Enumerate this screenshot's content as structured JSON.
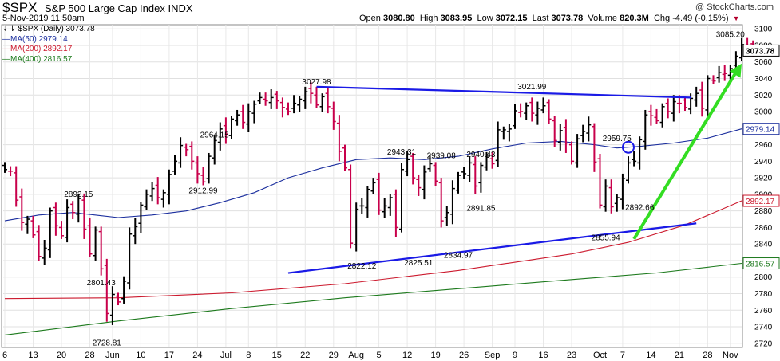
{
  "header": {
    "symbol": "$SPX",
    "name": "S&P 500 Large Cap Index",
    "exchange": "INDX",
    "brand": "@ StockCharts.com",
    "date": "5-Nov-2019 11:50am",
    "open_label": "Open",
    "open": "3080.80",
    "high_label": "High",
    "high": "3083.95",
    "low_label": "Low",
    "low": "3072.15",
    "last_label": "Last",
    "last": "3073.78",
    "volume_label": "Volume",
    "volume": "820.3M",
    "chg_label": "Chg",
    "chg": "-4.49 (-0.15%)"
  },
  "legend": {
    "price": "$SPX (Daily) 3073.78",
    "ma50": "MA(50) 2979.14",
    "ma200": "MA(200) 2892.17",
    "ma400": "MA(400) 2816.57"
  },
  "colors": {
    "up_bar": "#000000",
    "down_bar": "#c8004b",
    "ma50": "#1c2f9e",
    "ma200": "#cc1a2e",
    "ma400": "#1d7a1d",
    "trendline": "#1a1ae6",
    "arrow": "#33dd22"
  },
  "chart_data": {
    "type": "ohlc",
    "title": "$SPX S&P 500 Large Cap Index INDX",
    "ylim": [
      2715,
      3105
    ],
    "y_ticks": [
      2720,
      2740,
      2760,
      2780,
      2800,
      2820,
      2840,
      2860,
      2880,
      2900,
      2920,
      2940,
      2960,
      2980,
      3000,
      3020,
      3040,
      3060,
      3080,
      3100
    ],
    "x_ticks": [
      {
        "day": 0,
        "label": "6"
      },
      {
        "day": 5,
        "label": "13"
      },
      {
        "day": 10,
        "label": "20"
      },
      {
        "day": 15,
        "label": "28"
      },
      {
        "day": 19,
        "label": "Jun"
      },
      {
        "day": 24,
        "label": "10"
      },
      {
        "day": 29,
        "label": "17"
      },
      {
        "day": 34,
        "label": "24"
      },
      {
        "day": 39,
        "label": "Jul"
      },
      {
        "day": 43,
        "label": "8"
      },
      {
        "day": 48,
        "label": "15"
      },
      {
        "day": 53,
        "label": "22"
      },
      {
        "day": 58,
        "label": "29"
      },
      {
        "day": 62,
        "label": "Aug"
      },
      {
        "day": 66,
        "label": "5"
      },
      {
        "day": 71,
        "label": "12"
      },
      {
        "day": 76,
        "label": "19"
      },
      {
        "day": 81,
        "label": "26"
      },
      {
        "day": 86,
        "label": "Sep"
      },
      {
        "day": 90,
        "label": "9"
      },
      {
        "day": 95,
        "label": "16"
      },
      {
        "day": 100,
        "label": "23"
      },
      {
        "day": 105,
        "label": "Oct"
      },
      {
        "day": 109,
        "label": "7"
      },
      {
        "day": 114,
        "label": "14"
      },
      {
        "day": 119,
        "label": "21"
      },
      {
        "day": 124,
        "label": "28"
      },
      {
        "day": 128,
        "label": "Nov"
      }
    ],
    "closes": [
      2930,
      2928,
      2893,
      2866,
      2870,
      2851,
      2825,
      2835,
      2880,
      2862,
      2850,
      2884,
      2878,
      2895,
      2858,
      2828,
      2857,
      2810,
      2756,
      2779,
      2770,
      2795,
      2852,
      2861,
      2887,
      2900,
      2907,
      2896,
      2902,
      2924,
      2940,
      2959,
      2954,
      2940,
      2925,
      2915,
      2946,
      2965,
      2979,
      2973,
      2991,
      2996,
      2987,
      3000,
      3009,
      3017,
      3013,
      3017,
      3013,
      3005,
      3000,
      3010,
      3015,
      3024,
      3022,
      3008,
      3018,
      3006,
      2988,
      2952,
      2932,
      2841,
      2882,
      2886,
      2906,
      2914,
      2881,
      2886,
      2896,
      2860,
      2930,
      2942,
      2920,
      2908,
      2927,
      2937,
      2916,
      2868,
      2878,
      2907,
      2923,
      2925,
      2938,
      2910,
      2935,
      2945,
      2937,
      2978,
      2978,
      2979,
      3001,
      3000,
      3007,
      2998,
      3004,
      3007,
      2991,
      2965,
      2977,
      2962,
      2940,
      2967,
      2976,
      2984,
      2939,
      2887,
      2910,
      2885,
      2896,
      2919,
      2938,
      2940,
      2966,
      2996,
      2995,
      2989,
      3006,
      3000,
      3012,
      3010,
      3005,
      3016,
      3022,
      3004,
      3040,
      3037,
      3047,
      3046,
      3052,
      3067,
      3081,
      3078,
      3073.78
    ],
    "series": [
      {
        "name": "MA(50)",
        "last": 2979.14
      },
      {
        "name": "MA(200)",
        "last": 2892.17
      },
      {
        "name": "MA(400)",
        "last": 2816.57
      }
    ],
    "ma50_points": [
      [
        0,
        2868
      ],
      [
        6,
        2875
      ],
      [
        12,
        2878
      ],
      [
        20,
        2872
      ],
      [
        26,
        2875
      ],
      [
        32,
        2880
      ],
      [
        38,
        2890
      ],
      [
        44,
        2902
      ],
      [
        50,
        2920
      ],
      [
        56,
        2932
      ],
      [
        62,
        2942
      ],
      [
        68,
        2944
      ],
      [
        74,
        2942
      ],
      [
        80,
        2946
      ],
      [
        86,
        2955
      ],
      [
        92,
        2962
      ],
      [
        98,
        2964
      ],
      [
        104,
        2960
      ],
      [
        108,
        2956
      ],
      [
        112,
        2958
      ],
      [
        118,
        2962
      ],
      [
        124,
        2968
      ],
      [
        130,
        2979.14
      ]
    ],
    "ma200_points": [
      [
        0,
        2774
      ],
      [
        20,
        2775
      ],
      [
        40,
        2781
      ],
      [
        60,
        2792
      ],
      [
        80,
        2808
      ],
      [
        100,
        2828
      ],
      [
        110,
        2842
      ],
      [
        120,
        2863
      ],
      [
        130,
        2892.17
      ]
    ],
    "ma400_points": [
      [
        0,
        2730
      ],
      [
        20,
        2747
      ],
      [
        40,
        2762
      ],
      [
        60,
        2775
      ],
      [
        80,
        2786
      ],
      [
        100,
        2797
      ],
      [
        115,
        2805
      ],
      [
        130,
        2816.57
      ]
    ],
    "annotations": [
      {
        "text": "2892.15",
        "day": 13,
        "value": 2892.15,
        "pos": "above"
      },
      {
        "text": "2801.43",
        "day": 17,
        "value": 2801.43,
        "pos": "below"
      },
      {
        "text": "2728.81",
        "day": 18,
        "value": 2728.81,
        "pos": "below"
      },
      {
        "text": "2964.15",
        "day": 37,
        "value": 2964.15,
        "pos": "above"
      },
      {
        "text": "2912.99",
        "day": 35,
        "value": 2912.99,
        "pos": "below"
      },
      {
        "text": "3027.98",
        "day": 55,
        "value": 3027.98,
        "pos": "above"
      },
      {
        "text": "2943.31",
        "day": 70,
        "value": 2943.31,
        "pos": "above"
      },
      {
        "text": "2822.12",
        "day": 63,
        "value": 2822.12,
        "pos": "below"
      },
      {
        "text": "2939.08",
        "day": 77,
        "value": 2939.08,
        "pos": "above"
      },
      {
        "text": "2825.51",
        "day": 73,
        "value": 2825.51,
        "pos": "below"
      },
      {
        "text": "2834.97",
        "day": 80,
        "value": 2834.97,
        "pos": "below"
      },
      {
        "text": "2940.43",
        "day": 84,
        "value": 2940.43,
        "pos": "above"
      },
      {
        "text": "2891.85",
        "day": 84,
        "value": 2891.85,
        "pos": "below"
      },
      {
        "text": "3021.99",
        "day": 93,
        "value": 3021.99,
        "pos": "above"
      },
      {
        "text": "2959.75",
        "day": 108,
        "value": 2959.75,
        "pos": "above"
      },
      {
        "text": "2892.66",
        "day": 112,
        "value": 2892.66,
        "pos": "below"
      },
      {
        "text": "2855.94",
        "day": 106,
        "value": 2855.94,
        "pos": "below"
      },
      {
        "text": "3085.20",
        "day": 128,
        "value": 3085.2,
        "pos": "above"
      }
    ],
    "trendlines": [
      {
        "name": "resistance",
        "from": [
          55,
          3030
        ],
        "to": [
          121,
          3017
        ]
      },
      {
        "name": "support",
        "from": [
          50,
          2805
        ],
        "to": [
          122,
          2865
        ]
      }
    ],
    "arrow": {
      "from": [
        111,
        2846
      ],
      "to": [
        130,
        3058
      ]
    },
    "circle": {
      "day": 110,
      "value": 2957
    }
  }
}
